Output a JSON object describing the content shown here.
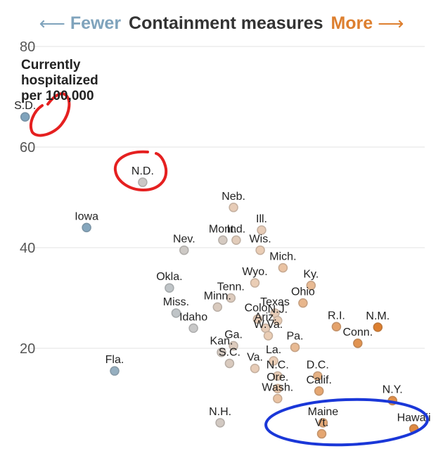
{
  "header": {
    "left_arrow": "⟵",
    "fewer": "Fewer",
    "title": "Containment measures",
    "more": "More",
    "right_arrow": "⟶"
  },
  "colors": {
    "fewer": "#7fa3bc",
    "more": "#dd7f2f",
    "grid": "#e3e3e3",
    "annotation_red": "#e52020",
    "annotation_blue": "#1a37d8"
  },
  "chart_data": {
    "type": "scatter",
    "title": "",
    "xlabel": "Containment measures",
    "ylabel": "Currently hospitalized per 100,000",
    "ylim": [
      0,
      80
    ],
    "yticks": [
      20,
      40,
      60,
      80
    ],
    "grid": true,
    "points": [
      {
        "label": "S.D.",
        "x": 0.6,
        "y": 66,
        "level": 0.0
      },
      {
        "label": "N.D.",
        "x": 18.2,
        "y": 53,
        "level": 0.28
      },
      {
        "label": "Iowa",
        "x": 9.8,
        "y": 44,
        "level": 0.02
      },
      {
        "label": "Nev.",
        "x": 24.4,
        "y": 39.5,
        "level": 0.3
      },
      {
        "label": "Neb.",
        "x": 31.8,
        "y": 48,
        "level": 0.55
      },
      {
        "label": "Mont.",
        "x": 30.2,
        "y": 41.5,
        "level": 0.38
      },
      {
        "label": "Ind.",
        "x": 32.2,
        "y": 41.5,
        "level": 0.5
      },
      {
        "label": "Ill.",
        "x": 36.0,
        "y": 43.5,
        "level": 0.55
      },
      {
        "label": "Wis.",
        "x": 35.8,
        "y": 39.5,
        "level": 0.58
      },
      {
        "label": "Mich.",
        "x": 39.2,
        "y": 36,
        "level": 0.65
      },
      {
        "label": "Wyo.",
        "x": 35.0,
        "y": 33,
        "level": 0.58
      },
      {
        "label": "Ky.",
        "x": 43.4,
        "y": 32.5,
        "level": 0.7
      },
      {
        "label": "Okla.",
        "x": 22.2,
        "y": 32,
        "level": 0.22
      },
      {
        "label": "Tenn.",
        "x": 31.4,
        "y": 30,
        "level": 0.45
      },
      {
        "label": "Ohio",
        "x": 42.2,
        "y": 29,
        "level": 0.72
      },
      {
        "label": "Minn.",
        "x": 29.4,
        "y": 28.2,
        "level": 0.42
      },
      {
        "label": "Miss.",
        "x": 23.2,
        "y": 27,
        "level": 0.22
      },
      {
        "label": "Texas",
        "x": 38.0,
        "y": 27,
        "level": 0.55
      },
      {
        "label": "Colo.",
        "x": 35.4,
        "y": 25.8,
        "level": 0.55
      },
      {
        "label": "N.J.",
        "x": 38.4,
        "y": 25.5,
        "level": 0.58
      },
      {
        "label": "Idaho",
        "x": 25.8,
        "y": 24,
        "level": 0.25
      },
      {
        "label": "Ariz.",
        "x": 36.6,
        "y": 24,
        "level": 0.55
      },
      {
        "label": "W.Va.",
        "x": 37.0,
        "y": 22.5,
        "level": 0.58
      },
      {
        "label": "R.I.",
        "x": 47.2,
        "y": 24.3,
        "level": 0.82
      },
      {
        "label": "N.M.",
        "x": 53.4,
        "y": 24.2,
        "level": 1.0
      },
      {
        "label": "Conn.",
        "x": 50.4,
        "y": 21,
        "level": 0.9
      },
      {
        "label": "Ga.",
        "x": 31.8,
        "y": 20.5,
        "level": 0.45
      },
      {
        "label": "Kan.",
        "x": 30.0,
        "y": 19.2,
        "level": 0.38
      },
      {
        "label": "Pa.",
        "x": 41.0,
        "y": 20.2,
        "level": 0.7
      },
      {
        "label": "La.",
        "x": 37.8,
        "y": 17.5,
        "level": 0.58
      },
      {
        "label": "S.C.",
        "x": 31.2,
        "y": 17,
        "level": 0.42
      },
      {
        "label": "Va.",
        "x": 35.0,
        "y": 16,
        "level": 0.55
      },
      {
        "label": "N.C.",
        "x": 38.4,
        "y": 14.5,
        "level": 0.58
      },
      {
        "label": "Fla.",
        "x": 14.0,
        "y": 15.5,
        "level": 0.08
      },
      {
        "label": "D.C.",
        "x": 44.4,
        "y": 14.5,
        "level": 0.75
      },
      {
        "label": "Calif.",
        "x": 44.6,
        "y": 11.5,
        "level": 0.8
      },
      {
        "label": "Ore.",
        "x": 38.4,
        "y": 12,
        "level": 0.62
      },
      {
        "label": "Wash.",
        "x": 38.4,
        "y": 10,
        "level": 0.65
      },
      {
        "label": "N.Y.",
        "x": 55.6,
        "y": 9.6,
        "level": 0.92
      },
      {
        "label": "N.H.",
        "x": 29.8,
        "y": 5.2,
        "level": 0.35
      },
      {
        "label": "Maine",
        "x": 45.2,
        "y": 5.2,
        "level": 0.78
      },
      {
        "label": "Vt.",
        "x": 45.0,
        "y": 3,
        "level": 0.8
      },
      {
        "label": "Hawaii",
        "x": 58.8,
        "y": 4,
        "level": 0.95
      }
    ]
  }
}
